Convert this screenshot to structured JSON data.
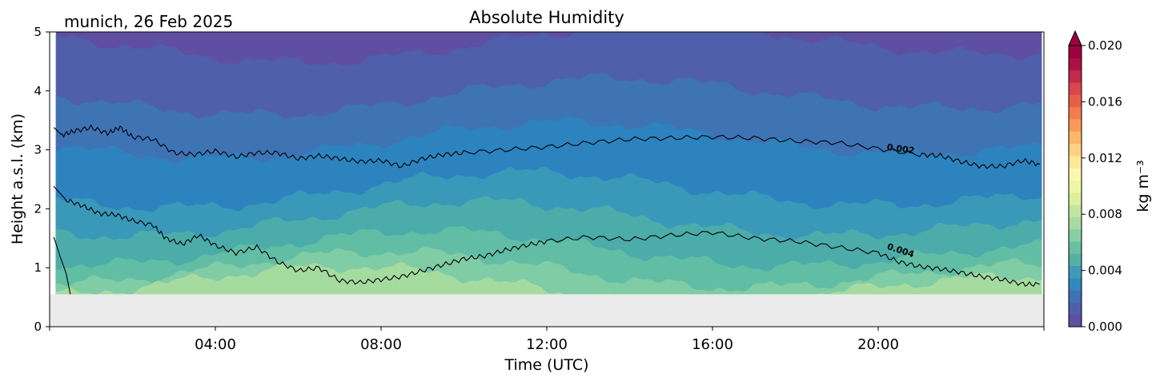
{
  "header": {
    "location_date": "munich, 26 Feb 2025",
    "title": "Absolute Humidity"
  },
  "chart_data": {
    "type": "heatmap",
    "title": "Absolute Humidity",
    "xlabel": "Time (UTC)",
    "ylabel": "Height a.s.l. (km)",
    "x_ticks": [
      "04:00",
      "08:00",
      "12:00",
      "16:00",
      "20:00"
    ],
    "x_tick_hours": [
      4,
      8,
      12,
      16,
      20
    ],
    "xlim_hours": [
      0,
      24
    ],
    "y_ticks": [
      "0",
      "1",
      "2",
      "3",
      "4",
      "5"
    ],
    "ylim_km": [
      0,
      5
    ],
    "data_bottom_km": 0.55,
    "no_data_color": "#ebebeb",
    "colorbar": {
      "label": "kg m⁻³",
      "ticks": [
        "0.000",
        "0.004",
        "0.008",
        "0.012",
        "0.016",
        "0.020"
      ],
      "tick_values": [
        0,
        0.004,
        0.008,
        0.012,
        0.016,
        0.02
      ],
      "range": [
        0,
        0.02
      ],
      "extend": "max",
      "colormap": "Spectral_r"
    },
    "contours": [
      {
        "level": "0.002",
        "hours": [
          0.1,
          0.3,
          0.6,
          1.0,
          1.4,
          1.7,
          2.0,
          2.5,
          3.0,
          3.5,
          4.0,
          4.5,
          5.0,
          5.5,
          6.0,
          6.5,
          7.0,
          7.5,
          8.0,
          8.5,
          9.0,
          9.5,
          10.0,
          11.0,
          12.0,
          13.0,
          14.0,
          15.0,
          16.0,
          17.0,
          18.0,
          19.0,
          20.0,
          21.0,
          21.5,
          22.0,
          22.5,
          23.0,
          23.5,
          23.9
        ],
        "height_km": [
          3.38,
          3.25,
          3.32,
          3.38,
          3.28,
          3.38,
          3.22,
          3.18,
          2.95,
          2.92,
          2.98,
          2.88,
          2.95,
          2.95,
          2.85,
          2.9,
          2.85,
          2.8,
          2.82,
          2.72,
          2.85,
          2.92,
          2.95,
          3.0,
          3.05,
          3.12,
          3.18,
          3.2,
          3.22,
          3.2,
          3.15,
          3.12,
          3.02,
          2.92,
          2.9,
          2.8,
          2.72,
          2.72,
          2.82,
          2.75
        ]
      },
      {
        "level": "0.004",
        "hours": [
          0.1,
          0.4,
          0.8,
          1.2,
          1.6,
          2.0,
          2.5,
          2.8,
          3.2,
          3.6,
          4.0,
          4.5,
          5.0,
          5.5,
          6.0,
          6.5,
          7.0,
          7.5,
          8.0,
          8.5,
          9.0,
          9.5,
          10.0,
          10.5,
          11.0,
          11.5,
          12.0,
          13.0,
          14.0,
          15.0,
          16.0,
          17.0,
          18.0,
          19.0,
          20.0,
          20.5,
          21.0,
          21.5,
          22.0,
          22.5,
          23.0,
          23.5,
          23.9
        ],
        "height_km": [
          2.38,
          2.15,
          2.05,
          1.92,
          1.9,
          1.8,
          1.72,
          1.5,
          1.4,
          1.55,
          1.38,
          1.25,
          1.35,
          1.1,
          0.95,
          1.0,
          0.78,
          0.75,
          0.8,
          0.85,
          0.95,
          1.05,
          1.15,
          1.2,
          1.3,
          1.38,
          1.45,
          1.52,
          1.48,
          1.55,
          1.6,
          1.5,
          1.45,
          1.35,
          1.25,
          1.1,
          1.02,
          0.98,
          0.92,
          0.85,
          0.8,
          0.72,
          0.72
        ]
      },
      {
        "level": "",
        "hours": [
          0.1,
          0.25,
          0.4,
          0.5
        ],
        "height_km": [
          1.52,
          1.2,
          0.9,
          0.55
        ]
      }
    ],
    "contour_labels": [
      {
        "text": "0.002",
        "hour": 20.2,
        "height_km": 3.0
      },
      {
        "text": "0.004",
        "hour": 20.2,
        "height_km": 1.32
      }
    ],
    "filled_bands": [
      {
        "upper_km_mean": 5.0,
        "color": "#5e4fa2"
      },
      {
        "upper_km_mean": 4.8,
        "color": "#4f5fab"
      },
      {
        "upper_km_mean": 3.9,
        "color": "#3e73b4"
      },
      {
        "upper_km_mean": 3.15,
        "color": "#2d83bd"
      },
      {
        "upper_km_mean": 2.3,
        "color": "#3a98b9"
      },
      {
        "upper_km_mean": 1.8,
        "color": "#4caca9"
      },
      {
        "upper_km_mean": 1.3,
        "color": "#61bea4"
      },
      {
        "upper_km_mean": 0.95,
        "color": "#7fcca5"
      },
      {
        "upper_km_mean": 0.7,
        "color": "#a6db9f"
      }
    ]
  }
}
